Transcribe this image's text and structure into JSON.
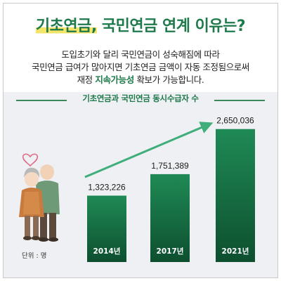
{
  "headline": {
    "part1": "기초연금,",
    "part2": " 국민연금 연계 이유는?"
  },
  "description": {
    "line1": "도입초기와 달리 국민연금이 성숙해짐에 따라",
    "line2": "국민연금 급여가 많아지면 기초연금 금액이 자동 조정됨으로써",
    "line3_prefix": "재정 ",
    "line3_highlight": "지속가능성",
    "line3_suffix": " 확보가 가능합니다."
  },
  "colors": {
    "accent": "#1e7a4a",
    "bar_top": "#1f8a55",
    "bar_bottom": "#0d4f2f",
    "arrow": "#3fae7a",
    "highlight": "#f4e46a",
    "panel": "#eef0f3"
  },
  "chart_data": {
    "type": "bar",
    "title": "기초연금과 국민연금 동시수급자 수",
    "categories": [
      "2014년",
      "2017년",
      "2021년"
    ],
    "values": [
      1323226,
      1751389,
      2650036
    ],
    "value_labels": [
      "1,323,226",
      "1,751,389",
      "2,650,036"
    ],
    "unit_label": "단위 : 명",
    "ylim": [
      0,
      2800000
    ],
    "grid": false,
    "trend_arrow": true
  },
  "illustration": {
    "icon": "elderly-couple-icon",
    "decoration": "heart-icon"
  }
}
